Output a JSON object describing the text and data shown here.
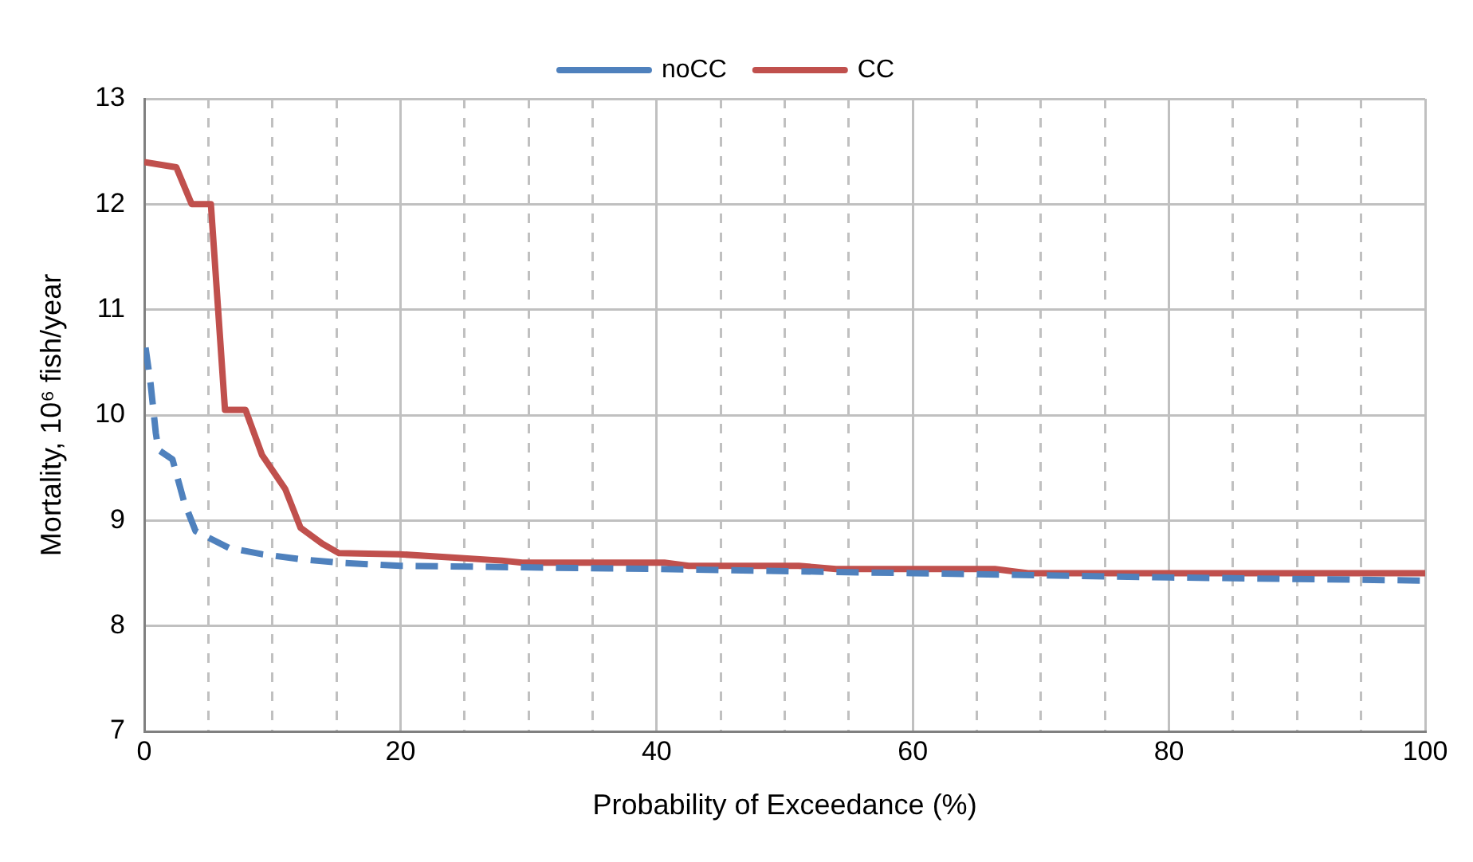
{
  "chart_data": {
    "type": "line",
    "xlabel": "Probability of Exceedance (%)",
    "ylabel": "Mortality, 10⁶ fish/year",
    "xlim": [
      0,
      100
    ],
    "ylim": [
      7,
      13
    ],
    "xticks": [
      0,
      {
        "value": 5,
        "label": null
      },
      {
        "value": 10,
        "label": null
      },
      {
        "value": 15,
        "label": null
      },
      20,
      {
        "value": 25,
        "label": null
      },
      {
        "value": 30,
        "label": null
      },
      {
        "value": 35,
        "label": null
      },
      40,
      {
        "value": 45,
        "label": null
      },
      {
        "value": 50,
        "label": null
      },
      {
        "value": 55,
        "label": null
      },
      60,
      {
        "value": 65,
        "label": null
      },
      {
        "value": 70,
        "label": null
      },
      {
        "value": 75,
        "label": null
      },
      80,
      {
        "value": 85,
        "label": null
      },
      {
        "value": 90,
        "label": null
      },
      {
        "value": 95,
        "label": null
      },
      100
    ],
    "yticks": [
      7,
      8,
      9,
      10,
      11,
      12,
      13
    ],
    "grid": true,
    "legend": "top",
    "marker": "none",
    "series": [
      {
        "name": "noCC",
        "color": "#4f81bd",
        "line_style": "dashed",
        "x": [
          0.1,
          0.5,
          0.9,
          1.1,
          2.2,
          3.1,
          4.0,
          6.6,
          9.2,
          12.4,
          15.2,
          20,
          40,
          60,
          80,
          100
        ],
        "values": [
          10.64,
          10.29,
          9.83,
          9.67,
          9.58,
          9.18,
          8.9,
          8.74,
          8.68,
          8.63,
          8.6,
          8.57,
          8.54,
          8.5,
          8.46,
          8.43
        ]
      },
      {
        "name": "CC",
        "color": "#c0504d",
        "line_style": "solid",
        "x": [
          0,
          2.5,
          3.7,
          5.2,
          6.3,
          7.9,
          9.2,
          11.0,
          12.2,
          13.9,
          15.2,
          19.9,
          27.9,
          29.5,
          40.6,
          42.5,
          51.1,
          54,
          66.4,
          69,
          100
        ],
        "values": [
          12.4,
          12.35,
          12.0,
          12.0,
          10.05,
          10.05,
          9.62,
          9.3,
          8.93,
          8.78,
          8.69,
          8.68,
          8.62,
          8.6,
          8.6,
          8.57,
          8.57,
          8.54,
          8.54,
          8.5,
          8.5
        ]
      }
    ]
  }
}
